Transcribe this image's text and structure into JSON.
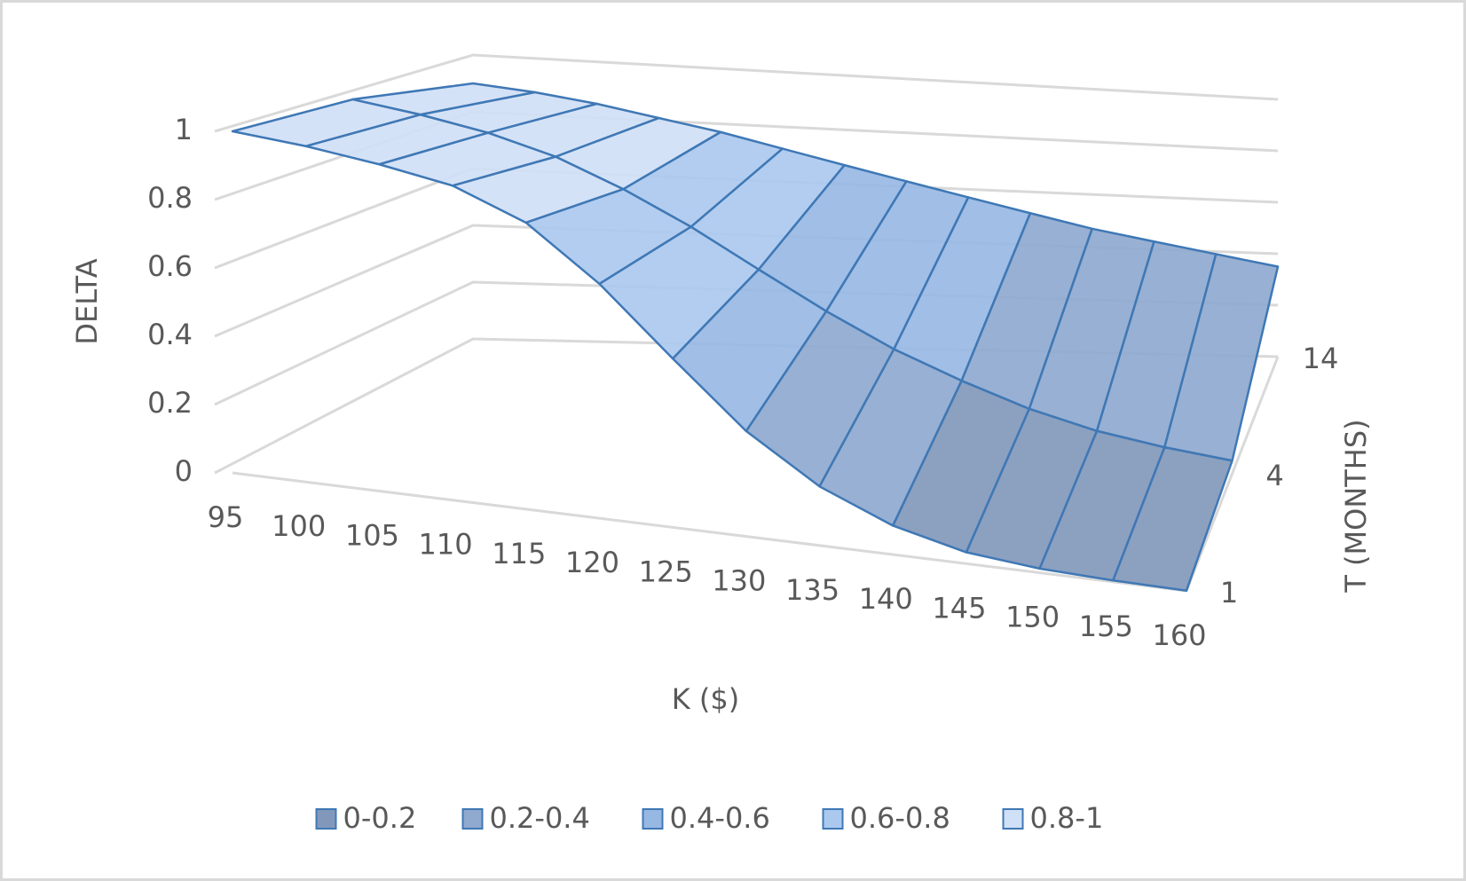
{
  "chart_data": {
    "type": "surface",
    "x_title": "K ($)",
    "y_title": "DELTA",
    "z_title": "T (MONTHS)",
    "categories": [
      "95",
      "100",
      "105",
      "110",
      "115",
      "120",
      "125",
      "130",
      "135",
      "140",
      "145",
      "150",
      "155",
      "160"
    ],
    "series": [
      {
        "name": "1",
        "values": [
          1,
          1,
          0.99,
          0.97,
          0.9,
          0.75,
          0.55,
          0.35,
          0.2,
          0.1,
          0.04,
          0.015,
          0.005,
          0.001
        ]
      },
      {
        "name": "4",
        "values": [
          0.98,
          0.96,
          0.93,
          0.88,
          0.8,
          0.7,
          0.58,
          0.46,
          0.35,
          0.26,
          0.18,
          0.12,
          0.08,
          0.05
        ]
      },
      {
        "name": "14",
        "values": [
          0.9,
          0.88,
          0.85,
          0.81,
          0.77,
          0.72,
          0.67,
          0.62,
          0.57,
          0.52,
          0.47,
          0.43,
          0.39,
          0.35
        ]
      }
    ],
    "ylim": [
      0,
      1
    ],
    "yticks": [
      0,
      0.2,
      0.4,
      0.6,
      0.8,
      1
    ],
    "bands": [
      {
        "name": "0-0.2",
        "min": 0,
        "max": 0.2,
        "color": "#8298bb"
      },
      {
        "name": "0.2-0.4",
        "min": 0.2,
        "max": 0.4,
        "color": "#8fa9cf"
      },
      {
        "name": "0.4-0.6",
        "min": 0.4,
        "max": 0.6,
        "color": "#98b8e4"
      },
      {
        "name": "0.6-0.8",
        "min": 0.6,
        "max": 0.8,
        "color": "#abc9ef"
      },
      {
        "name": "0.8-1",
        "min": 0.8,
        "max": 1,
        "color": "#d0e0f6"
      }
    ]
  }
}
